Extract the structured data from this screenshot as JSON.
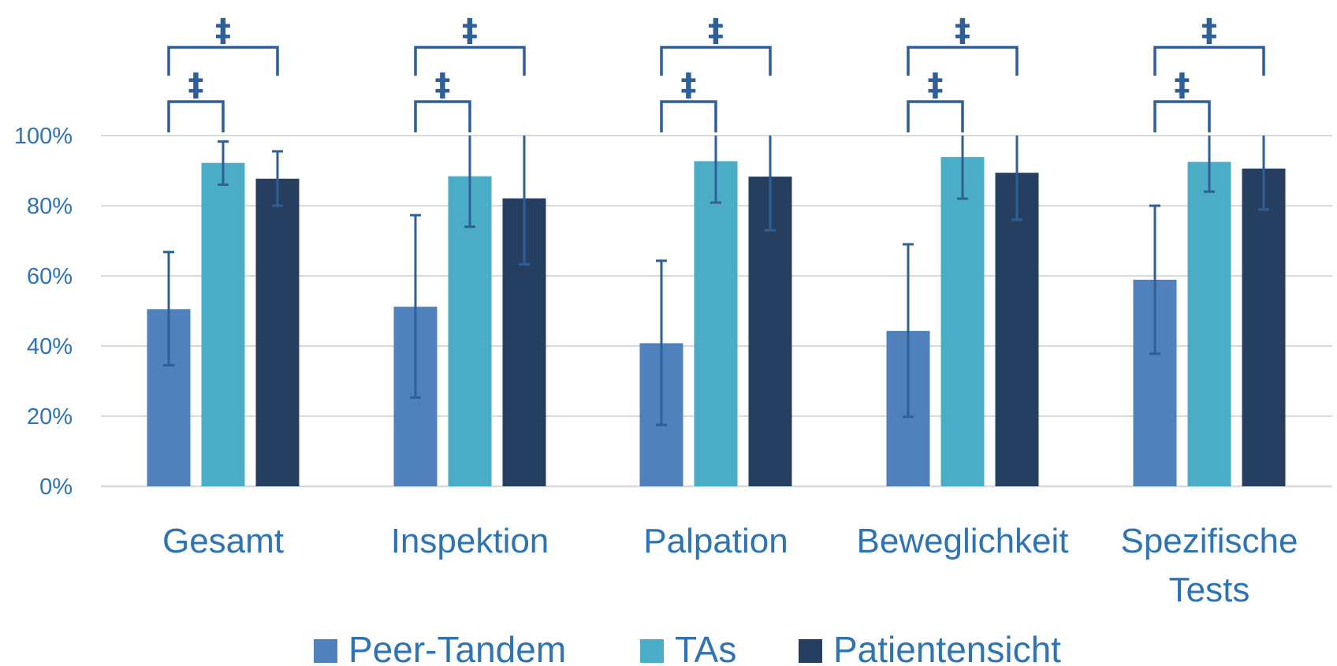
{
  "chart_data": {
    "type": "bar",
    "categories": [
      [
        "Gesamt"
      ],
      [
        "Inspektion"
      ],
      [
        "Palpation"
      ],
      [
        "Beweglichkeit"
      ],
      [
        "Spezifische",
        "Tests"
      ]
    ],
    "series": [
      {
        "name": "Peer-Tandem",
        "color": "#4f81bd",
        "values": [
          50.5,
          51.2,
          40.8,
          44.3,
          58.9
        ],
        "error_low": [
          34.5,
          25.3,
          17.5,
          19.8,
          37.8
        ],
        "error_high": [
          66.8,
          77.3,
          64.3,
          69.0,
          80.0
        ]
      },
      {
        "name": "TAs",
        "color": "#4bacc6",
        "values": [
          92.2,
          88.4,
          92.7,
          93.9,
          92.5
        ],
        "error_low": [
          86.0,
          74.0,
          80.9,
          82.0,
          84.0
        ],
        "error_high": [
          98.3,
          100,
          100,
          100,
          100
        ]
      },
      {
        "name": "Patientensicht",
        "color": "#263f60",
        "values": [
          87.7,
          82.1,
          88.3,
          89.4,
          90.6
        ],
        "error_low": [
          80.0,
          63.3,
          73.0,
          76.0,
          78.9
        ],
        "error_high": [
          95.5,
          100,
          100,
          100,
          100
        ]
      }
    ],
    "ylim": [
      0,
      100
    ],
    "yticks": [
      0,
      20,
      40,
      60,
      80,
      100
    ],
    "ytick_labels": [
      "0%",
      "20%",
      "40%",
      "60%",
      "80%",
      "100%"
    ],
    "grid": true,
    "legend_position": "bottom",
    "significance_symbol": "‡",
    "significance": [
      {
        "category": 0,
        "pairs": [
          [
            0,
            1
          ],
          [
            0,
            2
          ]
        ]
      },
      {
        "category": 1,
        "pairs": [
          [
            0,
            1
          ],
          [
            0,
            2
          ]
        ]
      },
      {
        "category": 2,
        "pairs": [
          [
            0,
            1
          ],
          [
            0,
            2
          ]
        ]
      },
      {
        "category": 3,
        "pairs": [
          [
            0,
            1
          ],
          [
            0,
            2
          ]
        ]
      },
      {
        "category": 4,
        "pairs": [
          [
            0,
            1
          ],
          [
            0,
            2
          ]
        ]
      }
    ],
    "colors": {
      "axis_text": "#2e74b5",
      "error_bar": "#2f5f97",
      "grid": "#d9d9d9"
    }
  }
}
